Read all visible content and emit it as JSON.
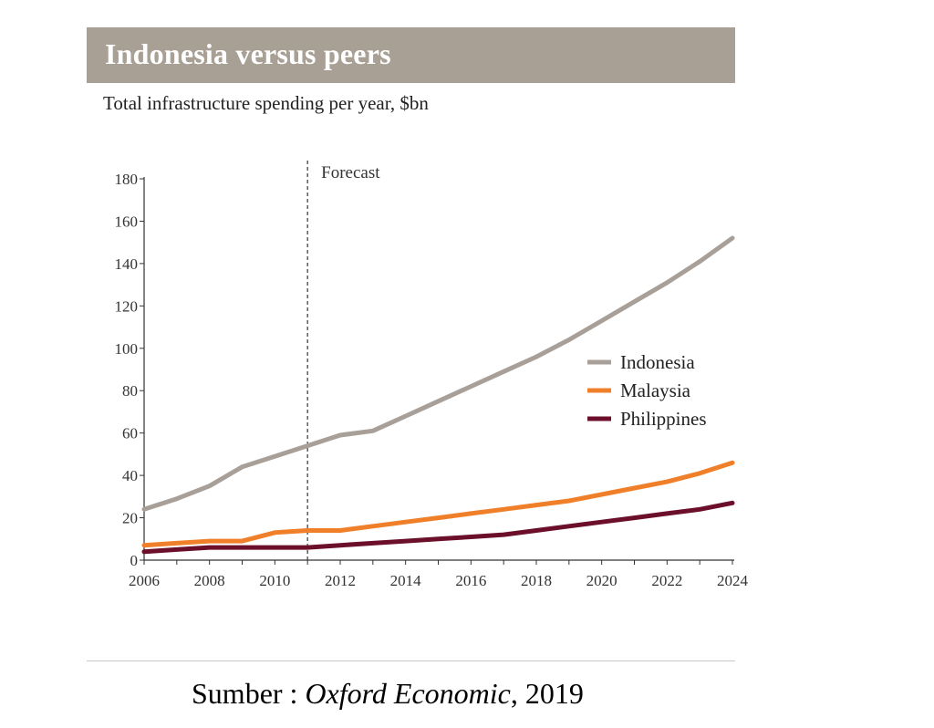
{
  "chart_data": {
    "type": "line",
    "title": "Indonesia versus peers",
    "subtitle": "Total infrastructure spending per year, $bn",
    "xlabel": "",
    "ylabel": "",
    "xlim": [
      2006,
      2024
    ],
    "ylim": [
      0,
      180
    ],
    "x_ticks": [
      "2006",
      "2008",
      "2010",
      "2012",
      "2014",
      "2016",
      "2018",
      "2020",
      "2022",
      "2024"
    ],
    "y_ticks": [
      "0",
      "20",
      "40",
      "60",
      "80",
      "100",
      "120",
      "140",
      "160",
      "180"
    ],
    "forecast_start": 2011,
    "forecast_label": "Forecast",
    "legend_position": "right",
    "grid": false,
    "x": [
      2006,
      2007,
      2008,
      2009,
      2010,
      2011,
      2012,
      2013,
      2014,
      2015,
      2016,
      2017,
      2018,
      2019,
      2020,
      2021,
      2022,
      2023,
      2024
    ],
    "series": [
      {
        "name": "Indonesia",
        "color": "#a8a098",
        "values": [
          24,
          29,
          35,
          44,
          49,
          54,
          59,
          61,
          68,
          75,
          82,
          89,
          96,
          104,
          113,
          122,
          131,
          141,
          152
        ]
      },
      {
        "name": "Malaysia",
        "color": "#f07f2a",
        "values": [
          7,
          8,
          9,
          9,
          13,
          14,
          14,
          16,
          18,
          20,
          22,
          24,
          26,
          28,
          31,
          34,
          37,
          41,
          46
        ]
      },
      {
        "name": "Philippines",
        "color": "#6b0f2a",
        "values": [
          4,
          5,
          6,
          6,
          6,
          6,
          7,
          8,
          9,
          10,
          11,
          12,
          14,
          16,
          18,
          20,
          22,
          24,
          27
        ]
      }
    ]
  },
  "source": {
    "prefix": "Sumber : ",
    "name": "Oxford Economic",
    "suffix": ", 2019"
  }
}
